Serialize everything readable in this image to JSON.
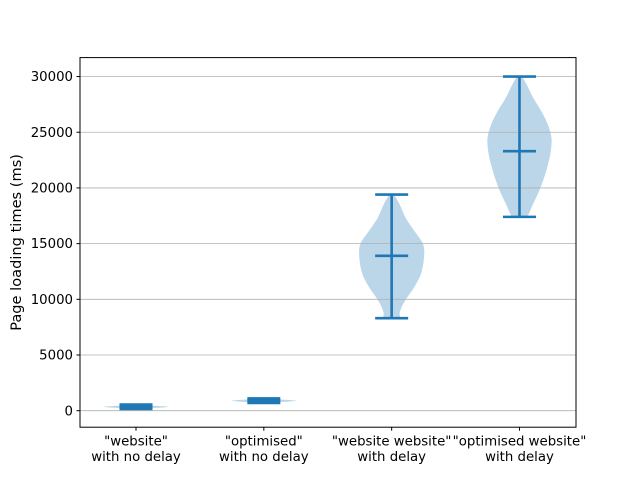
{
  "chart_data": {
    "type": "violin",
    "title": "",
    "ylabel": "Page loading times (ms)",
    "xlabel": "",
    "yticks": [
      0,
      5000,
      10000,
      15000,
      20000,
      25000,
      30000
    ],
    "ylim": [
      -1483,
      31700
    ],
    "grid": "horizontal-gridlines-on",
    "legend": "none",
    "categories": [
      "\"website\"\nwith no delay",
      "\"optimised\"\nwith no delay",
      "\"website website\"\nwith delay",
      "\"optimised website\"\nwith delay"
    ],
    "violins": [
      {
        "label_lines": [
          "\"website\"",
          "with no delay"
        ],
        "min": 150,
        "mean": 350,
        "max": 550,
        "silhouette": [
          [
            550,
            0.02
          ],
          [
            480,
            0.1
          ],
          [
            420,
            0.18
          ],
          [
            350,
            0.25
          ],
          [
            280,
            0.2
          ],
          [
            210,
            0.1
          ],
          [
            150,
            0.03
          ]
        ]
      },
      {
        "label_lines": [
          "\"optimised\"",
          "with no delay"
        ],
        "min": 700,
        "mean": 900,
        "max": 1100,
        "silhouette": [
          [
            1100,
            0.02
          ],
          [
            1030,
            0.1
          ],
          [
            970,
            0.18
          ],
          [
            900,
            0.25
          ],
          [
            830,
            0.2
          ],
          [
            760,
            0.1
          ],
          [
            700,
            0.03
          ]
        ]
      },
      {
        "label_lines": [
          "\"website website\"",
          "with delay"
        ],
        "min": 8300,
        "mean": 13900,
        "max": 19400,
        "silhouette": [
          [
            19400,
            0.016
          ],
          [
            18500,
            0.063
          ],
          [
            17300,
            0.11
          ],
          [
            16100,
            0.18
          ],
          [
            15200,
            0.235
          ],
          [
            14500,
            0.254
          ],
          [
            13400,
            0.25
          ],
          [
            12200,
            0.227
          ],
          [
            11000,
            0.172
          ],
          [
            10100,
            0.117
          ],
          [
            9400,
            0.082
          ],
          [
            8800,
            0.063
          ],
          [
            8300,
            0.055
          ]
        ]
      },
      {
        "label_lines": [
          "\"optimised website\"",
          "with delay"
        ],
        "min": 17400,
        "mean": 23300,
        "max": 30000,
        "silhouette": [
          [
            30000,
            0.016
          ],
          [
            29300,
            0.055
          ],
          [
            28100,
            0.107
          ],
          [
            26900,
            0.17
          ],
          [
            25700,
            0.221
          ],
          [
            24500,
            0.25
          ],
          [
            23300,
            0.245
          ],
          [
            22100,
            0.223
          ],
          [
            20900,
            0.192
          ],
          [
            19700,
            0.153
          ],
          [
            18500,
            0.104
          ],
          [
            17600,
            0.069
          ],
          [
            17400,
            0.047
          ]
        ]
      }
    ],
    "colors": {
      "body_fill": "#1f77b4",
      "body_alpha": 0.3,
      "stat_line": "#1f77b4",
      "grid_line": "#b0b0b0",
      "spine": "#000000",
      "text": "#000000"
    }
  }
}
